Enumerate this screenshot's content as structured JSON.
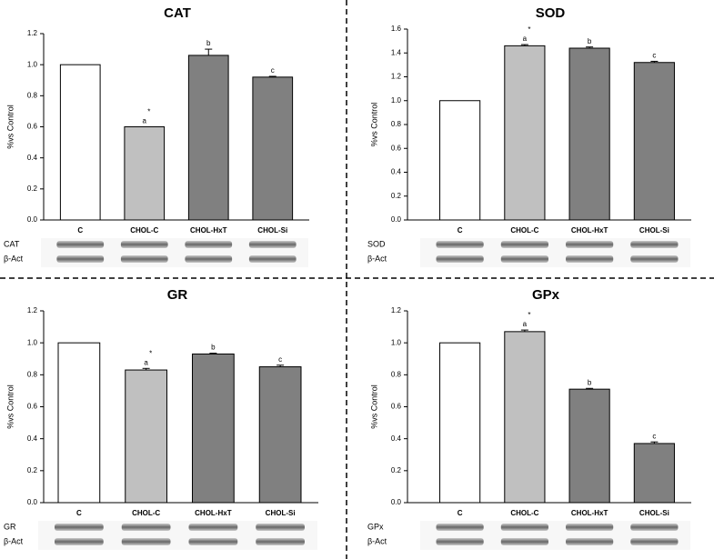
{
  "chart_data": [
    {
      "type": "bar",
      "title": "CAT",
      "y_label": "%vs Control",
      "categories": [
        "C",
        "CHOL-C",
        "CHOL-HxT",
        "CHOL-Si"
      ],
      "values": [
        1.0,
        0.6,
        1.06,
        0.92
      ],
      "errors": [
        0,
        0,
        0.04,
        0.005
      ],
      "colors": [
        "#ffffff",
        "#c0c0c0",
        "#808080",
        "#808080"
      ],
      "letters": [
        null,
        "a",
        "b",
        "c"
      ],
      "stars": [
        null,
        "*",
        null,
        null
      ],
      "ylim": [
        0,
        1.2
      ],
      "yticks": [
        {
          "value": 0,
          "label": "0.0"
        },
        0.2,
        0.4,
        0.6,
        0.8,
        {
          "value": 1,
          "label": "1.0"
        },
        1.2
      ],
      "blot_labels": [
        "CAT",
        "β-Act"
      ]
    },
    {
      "type": "bar",
      "title": "SOD",
      "y_label": "%vs Control",
      "categories": [
        "C",
        "CHOL-C",
        "CHOL-HxT",
        "CHOL-Si"
      ],
      "values": [
        1.0,
        1.46,
        1.44,
        1.32
      ],
      "errors": [
        0,
        0.01,
        0.01,
        0.01
      ],
      "colors": [
        "#ffffff",
        "#c0c0c0",
        "#808080",
        "#808080"
      ],
      "letters": [
        null,
        "a",
        "b",
        "c"
      ],
      "stars": [
        null,
        "*",
        null,
        null
      ],
      "ylim": [
        0,
        1.6
      ],
      "yticks": [
        {
          "value": 0,
          "label": "0.0"
        },
        0.2,
        0.4,
        0.6,
        0.8,
        {
          "value": 1,
          "label": "1.0"
        },
        1.2,
        1.4,
        1.6
      ],
      "blot_labels": [
        "SOD",
        "β-Act"
      ]
    },
    {
      "type": "bar",
      "title": "GR",
      "y_label": "%vs Control",
      "categories": [
        "C",
        "CHOL-C",
        "CHOL-HxT",
        "CHOL-Si"
      ],
      "values": [
        1.0,
        0.83,
        0.93,
        0.85
      ],
      "errors": [
        0,
        0.01,
        0.005,
        0.01
      ],
      "colors": [
        "#ffffff",
        "#c0c0c0",
        "#808080",
        "#808080"
      ],
      "letters": [
        null,
        "a",
        "b",
        "c"
      ],
      "stars": [
        null,
        "*",
        null,
        null
      ],
      "ylim": [
        0,
        1.2
      ],
      "yticks": [
        {
          "value": 0,
          "label": "0.0"
        },
        0.2,
        0.4,
        0.6,
        0.8,
        {
          "value": 1,
          "label": "1.0"
        },
        1.2
      ],
      "blot_labels": [
        "GR",
        "β-Act"
      ]
    },
    {
      "type": "bar",
      "title": "GPx",
      "y_label": "%vs Control",
      "categories": [
        "C",
        "CHOL-C",
        "CHOL-HxT",
        "CHOL-Si"
      ],
      "values": [
        1.0,
        1.07,
        0.71,
        0.37
      ],
      "errors": [
        0,
        0.01,
        0.005,
        0.01
      ],
      "colors": [
        "#ffffff",
        "#c0c0c0",
        "#808080",
        "#808080"
      ],
      "letters": [
        null,
        "a",
        "b",
        "c"
      ],
      "stars": [
        null,
        "*",
        null,
        null
      ],
      "ylim": [
        0,
        1.2
      ],
      "yticks": [
        {
          "value": 0,
          "label": "0.0"
        },
        0.2,
        0.4,
        0.6,
        0.8,
        {
          "value": 1,
          "label": "1.0"
        },
        1.2
      ],
      "blot_labels": [
        "GPx",
        "β-Act"
      ]
    }
  ]
}
